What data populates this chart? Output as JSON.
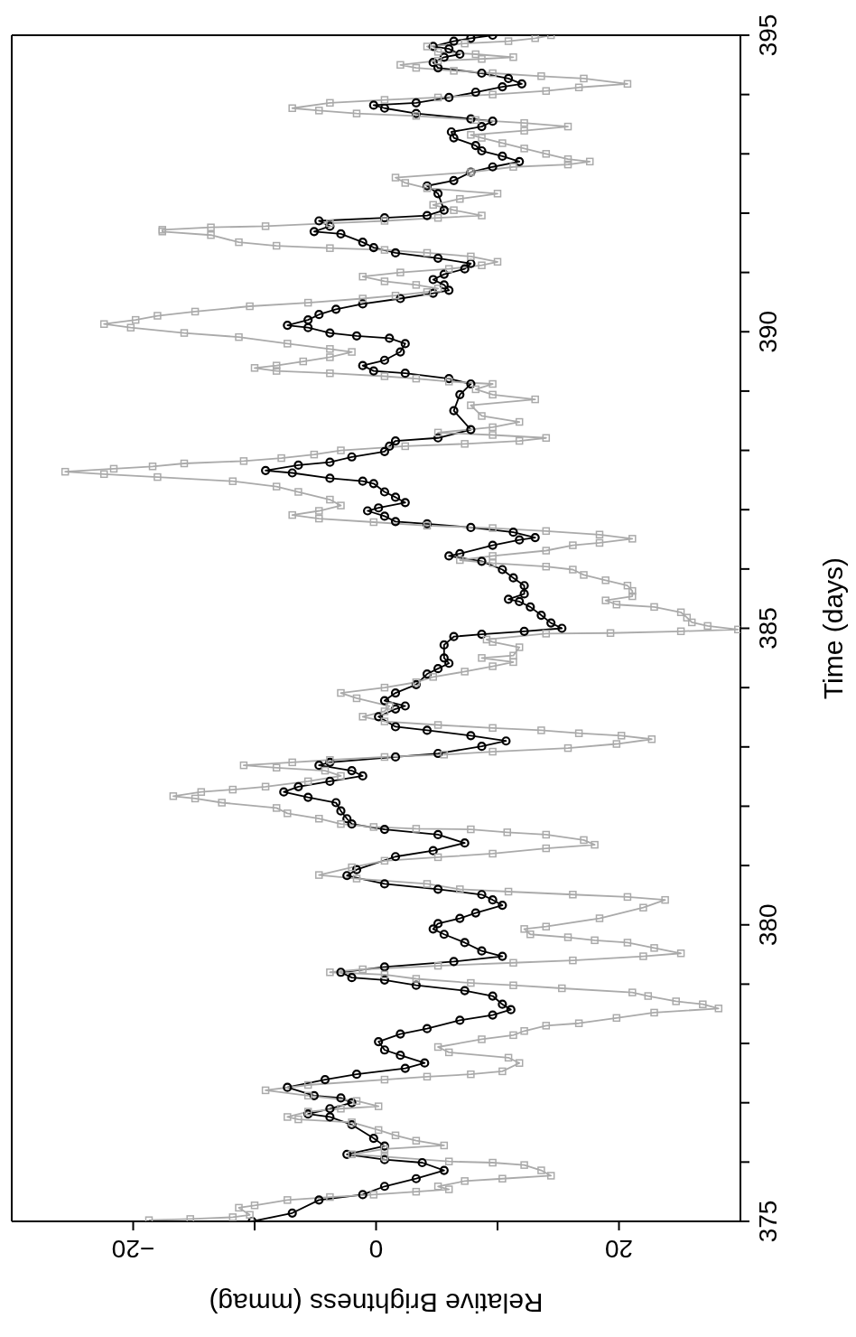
{
  "chart_data": {
    "type": "line",
    "xlabel": "Relative Brightness (mmag)",
    "ylabel": "Time (days)",
    "xlim": [
      -30,
      30
    ],
    "ylim": [
      375,
      395
    ],
    "yticks": [
      375,
      {
        "value": 376,
        "label": null
      },
      {
        "value": 377,
        "label": null
      },
      {
        "value": 378,
        "label": null
      },
      {
        "value": 379,
        "label": null
      },
      380,
      {
        "value": 381,
        "label": null
      },
      {
        "value": 382,
        "label": null
      },
      {
        "value": 383,
        "label": null
      },
      {
        "value": 384,
        "label": null
      },
      385,
      {
        "value": 386,
        "label": null
      },
      {
        "value": 387,
        "label": null
      },
      {
        "value": 388,
        "label": null
      },
      {
        "value": 389,
        "label": null
      },
      390,
      {
        "value": 391,
        "label": null
      },
      {
        "value": 392,
        "label": null
      },
      {
        "value": 393,
        "label": null
      },
      {
        "value": 394,
        "label": null
      },
      395
    ],
    "xticks": [
      {
        "value": -20,
        "label": "−20"
      },
      {
        "value": -10,
        "label": null
      },
      0,
      {
        "value": 10,
        "label": null
      },
      20
    ],
    "line_style": "solid",
    "series": [
      {
        "color": "#000000",
        "marker": "circle",
        "values": [
          375.0,
          375.14,
          375.36,
          375.45,
          375.59,
          375.72,
          375.86,
          375.99,
          376.04,
          376.13,
          376.27,
          376.4,
          376.63,
          376.76,
          376.81,
          376.9,
          377.0,
          377.08,
          377.12,
          377.26,
          377.39,
          377.48,
          377.58,
          377.67,
          377.8,
          377.89,
          378.03,
          378.16,
          378.25,
          378.39,
          378.48,
          378.57,
          378.66,
          378.8,
          378.89,
          378.98,
          379.07,
          379.11,
          379.2,
          379.29,
          379.38,
          379.47,
          379.56,
          379.7,
          379.84,
          379.93,
          380.02,
          380.11,
          380.2,
          380.33,
          380.42,
          380.51,
          380.6,
          380.69,
          380.83,
          380.93,
          381.15,
          381.25,
          381.38,
          381.52,
          381.61,
          381.7,
          381.79,
          381.92,
          382.06,
          382.15,
          382.24,
          382.33,
          382.42,
          382.51,
          382.6,
          382.69,
          382.74,
          382.83,
          382.89,
          383.01,
          383.1,
          383.19,
          383.28,
          383.34,
          383.51,
          383.64,
          383.69,
          383.78,
          383.91,
          384.05,
          384.23,
          384.32,
          384.41,
          384.5,
          384.72,
          384.86,
          384.9,
          384.95,
          385.0,
          385.09,
          385.22,
          385.36,
          385.45,
          385.49,
          385.58,
          385.72,
          385.85,
          385.99,
          386.13,
          386.22,
          386.26,
          386.4,
          386.49,
          386.53,
          386.62,
          386.7,
          386.76,
          386.8,
          386.89,
          386.98,
          387.03,
          387.12,
          387.21,
          387.3,
          387.44,
          387.48,
          387.53,
          387.62,
          387.66,
          387.75,
          387.8,
          387.89,
          387.98,
          388.07,
          388.16,
          388.21,
          388.35,
          388.67,
          388.94,
          389.12,
          389.21,
          389.3,
          389.34,
          389.43,
          389.52,
          389.66,
          389.8,
          389.89,
          389.93,
          389.98,
          390.07,
          390.11,
          390.2,
          390.29,
          390.38,
          390.47,
          390.56,
          390.65,
          390.7,
          390.79,
          390.88,
          390.97,
          391.06,
          391.15,
          391.24,
          391.33,
          391.42,
          391.51,
          391.65,
          391.69,
          391.78,
          391.87,
          391.92,
          391.96,
          392.05,
          392.33,
          392.46,
          392.55,
          392.69,
          392.78,
          392.87,
          392.96,
          393.05,
          393.14,
          393.27,
          393.37,
          393.46,
          393.55,
          393.59,
          393.68,
          393.77,
          393.82,
          393.86,
          393.95,
          394.04,
          394.13,
          394.18,
          394.27,
          394.36,
          394.45,
          394.54,
          394.63,
          394.68,
          394.77,
          394.81,
          394.9,
          394.95,
          395.0
        ],
        "x": [
          -10.2,
          -6.9,
          -4.7,
          -1.1,
          0.7,
          3.3,
          5.6,
          3.8,
          0.7,
          -2.4,
          0.7,
          -0.2,
          -2.0,
          -3.8,
          -5.6,
          -3.8,
          -2.0,
          -2.9,
          -5.1,
          -7.3,
          -4.2,
          -1.6,
          2.4,
          4.0,
          2.0,
          0.7,
          0.2,
          2.0,
          4.2,
          6.9,
          9.6,
          11.1,
          10.4,
          9.6,
          7.3,
          3.3,
          0.7,
          -2.0,
          -2.9,
          0.7,
          6.4,
          10.4,
          8.7,
          7.3,
          5.6,
          4.7,
          5.1,
          6.9,
          8.2,
          10.4,
          9.6,
          8.7,
          5.1,
          0.7,
          -2.4,
          -1.6,
          1.6,
          4.7,
          7.3,
          5.1,
          0.7,
          -2.0,
          -2.4,
          -2.9,
          -3.3,
          -5.6,
          -7.6,
          -6.4,
          -3.8,
          -1.1,
          -2.0,
          -4.7,
          -3.8,
          1.6,
          5.1,
          8.7,
          10.7,
          7.8,
          4.2,
          1.6,
          0.2,
          1.6,
          2.4,
          0.7,
          1.6,
          3.3,
          4.2,
          5.1,
          6.0,
          5.6,
          5.6,
          6.4,
          8.7,
          12.2,
          15.3,
          14.4,
          13.6,
          12.7,
          11.8,
          10.9,
          12.2,
          12.2,
          11.3,
          10.4,
          8.7,
          6.0,
          6.9,
          9.6,
          11.8,
          13.1,
          11.3,
          7.8,
          4.2,
          1.6,
          0.7,
          -0.7,
          0.2,
          2.4,
          1.6,
          0.7,
          -0.2,
          -1.1,
          -3.8,
          -6.9,
          -9.1,
          -6.4,
          -3.8,
          -2.0,
          0.7,
          1.1,
          1.6,
          5.1,
          7.8,
          6.4,
          6.9,
          7.8,
          6.0,
          2.4,
          -0.2,
          -1.1,
          0.7,
          2.0,
          2.4,
          1.1,
          -1.6,
          -3.8,
          -5.6,
          -7.3,
          -5.6,
          -4.7,
          -3.3,
          -1.1,
          2.0,
          4.7,
          6.0,
          5.6,
          4.7,
          5.6,
          7.3,
          7.8,
          5.1,
          1.6,
          -0.2,
          -1.1,
          -2.9,
          -5.1,
          -3.8,
          -4.7,
          0.7,
          4.2,
          5.6,
          5.1,
          4.2,
          6.4,
          7.8,
          9.6,
          11.8,
          10.4,
          8.7,
          8.2,
          6.4,
          6.2,
          8.7,
          9.6,
          7.8,
          3.3,
          0.7,
          -0.2,
          3.3,
          6.0,
          8.2,
          10.4,
          12.0,
          10.9,
          8.7,
          5.1,
          4.7,
          5.6,
          6.9,
          6.0,
          4.7,
          6.4,
          7.8,
          9.6
        ]
      },
      {
        "color": "#aaaaaa",
        "marker": "square",
        "values": [
          375.02,
          375.04,
          375.07,
          375.11,
          375.23,
          375.27,
          375.36,
          375.41,
          375.45,
          375.5,
          375.54,
          375.59,
          375.68,
          375.72,
          375.77,
          375.86,
          375.95,
          375.99,
          376.01,
          376.09,
          376.13,
          376.22,
          376.28,
          376.36,
          376.45,
          376.54,
          376.67,
          376.72,
          376.76,
          376.85,
          376.9,
          376.94,
          377.03,
          377.12,
          377.21,
          377.3,
          377.39,
          377.44,
          377.48,
          377.53,
          377.67,
          377.76,
          377.85,
          377.94,
          378.07,
          378.14,
          378.21,
          378.3,
          378.34,
          378.43,
          378.52,
          378.59,
          378.66,
          378.71,
          378.8,
          378.86,
          378.93,
          378.98,
          379.02,
          379.09,
          379.16,
          379.2,
          379.25,
          379.31,
          379.36,
          379.4,
          379.47,
          379.52,
          379.61,
          379.7,
          379.74,
          379.79,
          379.84,
          379.93,
          379.97,
          380.11,
          380.29,
          380.42,
          380.47,
          380.51,
          380.56,
          380.6,
          380.69,
          380.78,
          380.84,
          380.97,
          381.08,
          381.14,
          381.2,
          381.29,
          381.35,
          381.43,
          381.52,
          381.56,
          381.61,
          381.62,
          381.65,
          381.7,
          381.79,
          381.88,
          381.97,
          382.06,
          382.13,
          382.17,
          382.24,
          382.28,
          382.33,
          382.42,
          382.51,
          382.6,
          382.65,
          382.69,
          382.74,
          382.78,
          382.83,
          382.87,
          382.92,
          382.98,
          383.05,
          383.13,
          383.19,
          383.23,
          383.28,
          383.32,
          383.37,
          383.43,
          383.51,
          383.6,
          383.69,
          383.82,
          383.91,
          384.0,
          384.09,
          384.18,
          384.27,
          384.36,
          384.43,
          384.5,
          384.54,
          384.68,
          384.77,
          384.81,
          384.91,
          384.92,
          384.95,
          384.98,
          385.04,
          385.1,
          385.18,
          385.27,
          385.36,
          385.4,
          385.47,
          385.54,
          385.63,
          385.72,
          385.81,
          385.9,
          385.99,
          386.04,
          386.1,
          386.15,
          386.22,
          386.31,
          386.4,
          386.44,
          386.51,
          386.58,
          386.64,
          386.69,
          386.73,
          386.79,
          386.85,
          386.91,
          386.98,
          387.07,
          387.17,
          387.3,
          387.39,
          387.48,
          387.55,
          387.6,
          387.64,
          387.69,
          387.73,
          387.78,
          387.82,
          387.87,
          387.93,
          388.0,
          388.07,
          388.11,
          388.16,
          388.21,
          388.26,
          388.3,
          388.39,
          388.48,
          388.58,
          388.76,
          388.86,
          388.94,
          389.03,
          389.12,
          389.16,
          389.21,
          389.25,
          389.3,
          389.34,
          389.39,
          389.43,
          389.5,
          389.57,
          389.66,
          389.71,
          389.8,
          389.91,
          389.98,
          390.07,
          390.13,
          390.2,
          390.27,
          390.34,
          390.43,
          390.49,
          390.56,
          390.61,
          390.67,
          390.73,
          390.79,
          390.85,
          390.93,
          391.0,
          391.06,
          391.12,
          391.18,
          391.27,
          391.33,
          391.38,
          391.41,
          391.45,
          391.51,
          391.63,
          391.69,
          391.72,
          391.76,
          391.78,
          391.83,
          391.87,
          391.92,
          391.96,
          392.05,
          392.14,
          392.24,
          392.33,
          392.42,
          392.51,
          392.6,
          392.69,
          392.78,
          392.82,
          392.87,
          392.91,
          393.0,
          393.09,
          393.18,
          393.27,
          393.32,
          393.39,
          393.46,
          393.52,
          393.57,
          393.64,
          393.68,
          393.73,
          393.77,
          393.86,
          393.91,
          393.95,
          394.0,
          394.06,
          394.12,
          394.18,
          394.27,
          394.31,
          394.36,
          394.4,
          394.45,
          394.5,
          394.57,
          394.6,
          394.63,
          394.68,
          394.72,
          394.81,
          394.86,
          394.9,
          394.95,
          395.0
        ],
        "x": [
          -18.7,
          -15.3,
          -11.8,
          -10.4,
          -11.3,
          -10.0,
          -7.3,
          -3.8,
          -0.2,
          3.3,
          6.0,
          5.1,
          7.3,
          10.4,
          14.4,
          13.6,
          12.2,
          9.6,
          6.0,
          0.7,
          -2.0,
          0.7,
          5.6,
          3.3,
          1.6,
          0.2,
          -2.0,
          -6.4,
          -7.3,
          -5.6,
          -2.9,
          0.2,
          -1.6,
          -5.6,
          -9.1,
          -5.6,
          0.7,
          4.2,
          7.8,
          10.4,
          11.8,
          10.9,
          6.0,
          5.1,
          8.7,
          11.3,
          12.2,
          14.0,
          16.7,
          19.8,
          22.9,
          28.2,
          26.9,
          24.7,
          22.4,
          21.1,
          15.3,
          11.3,
          7.8,
          3.3,
          0.7,
          -3.8,
          -1.1,
          5.1,
          11.3,
          16.2,
          22.0,
          25.1,
          22.9,
          20.7,
          18.0,
          15.8,
          12.7,
          12.2,
          14.0,
          18.4,
          22.0,
          23.8,
          20.7,
          16.2,
          10.9,
          6.9,
          4.2,
          -1.6,
          -4.7,
          -2.0,
          0.7,
          5.1,
          9.6,
          14.0,
          18.0,
          17.1,
          14.0,
          10.8,
          7.8,
          3.3,
          -0.2,
          -2.9,
          -4.7,
          -7.3,
          -8.2,
          -12.7,
          -14.9,
          -16.7,
          -14.4,
          -11.8,
          -9.1,
          -5.6,
          -2.9,
          -4.2,
          -8.2,
          -10.9,
          -6.9,
          -3.8,
          0.7,
          5.6,
          9.6,
          15.8,
          19.8,
          22.7,
          20.2,
          16.7,
          13.6,
          9.6,
          5.1,
          0.7,
          -1.1,
          0.7,
          1.1,
          -1.6,
          -2.9,
          0.7,
          3.3,
          4.7,
          7.3,
          9.6,
          11.3,
          8.7,
          11.3,
          11.8,
          9.6,
          9.1,
          14.0,
          19.3,
          25.1,
          29.8,
          27.3,
          26.0,
          25.6,
          25.1,
          22.9,
          19.8,
          18.9,
          21.1,
          21.1,
          20.7,
          18.9,
          17.1,
          16.2,
          14.0,
          9.6,
          6.9,
          9.6,
          14.0,
          16.2,
          18.4,
          21.1,
          18.4,
          14.0,
          9.6,
          4.2,
          -0.2,
          -4.7,
          -6.9,
          -4.7,
          -2.9,
          -3.8,
          -6.4,
          -8.2,
          -11.8,
          -18.0,
          -22.4,
          -25.6,
          -21.6,
          -18.4,
          -15.8,
          -10.9,
          -7.8,
          -5.1,
          -2.9,
          2.4,
          7.3,
          11.8,
          14.0,
          9.6,
          5.1,
          9.6,
          11.8,
          8.7,
          7.8,
          13.1,
          9.6,
          8.2,
          9.6,
          6.0,
          3.3,
          0.7,
          -3.8,
          -8.2,
          -10.0,
          -8.2,
          -6.0,
          -3.8,
          -2.0,
          -3.8,
          -7.3,
          -11.3,
          -15.8,
          -20.2,
          -22.4,
          -19.8,
          -18.0,
          -14.9,
          -10.4,
          -5.6,
          -1.1,
          1.6,
          4.2,
          5.1,
          3.3,
          0.7,
          -1.1,
          2.0,
          6.0,
          8.7,
          10.0,
          7.8,
          4.2,
          0.7,
          -3.8,
          -8.2,
          -11.3,
          -13.6,
          -17.6,
          -17.6,
          -13.6,
          -9.1,
          -3.8,
          0.7,
          5.1,
          8.7,
          6.4,
          4.7,
          6.9,
          10.0,
          4.2,
          2.4,
          1.6,
          7.8,
          11.3,
          15.8,
          17.6,
          15.8,
          14.0,
          12.2,
          10.4,
          8.7,
          7.8,
          12.2,
          15.8,
          12.2,
          8.2,
          3.3,
          -1.6,
          -4.7,
          -6.9,
          -3.8,
          0.7,
          5.1,
          9.6,
          14.0,
          16.7,
          20.7,
          17.1,
          13.6,
          9.6,
          6.4,
          3.3,
          2.0,
          5.1,
          8.7,
          11.3,
          8.2,
          5.1,
          4.2,
          7.3,
          10.9,
          13.1,
          14.4
        ]
      }
    ]
  }
}
